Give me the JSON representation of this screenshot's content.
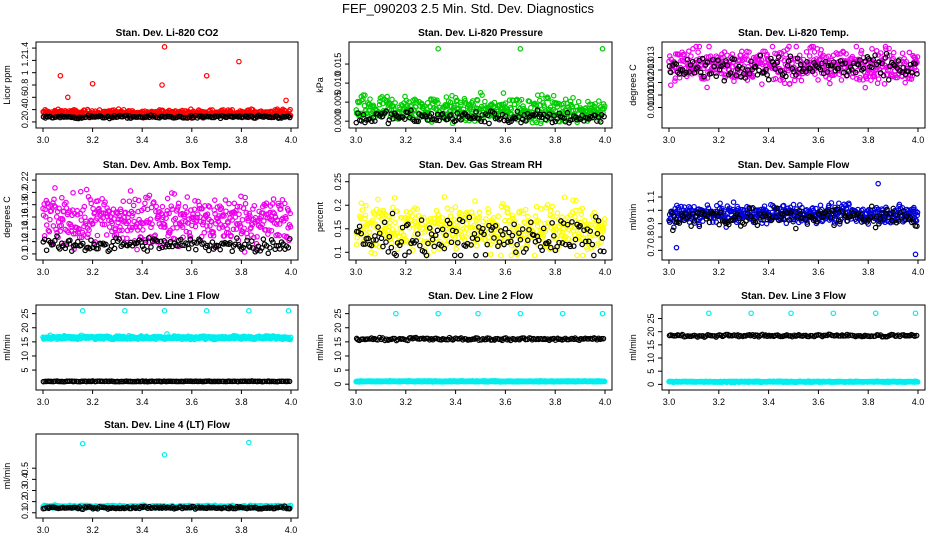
{
  "page": {
    "title": "FEF_090203  2.5 Min. Std. Dev. Diagnostics"
  },
  "chart_data": [
    {
      "type": "scatter",
      "title": "Stan. Dev. Li-820 CO2",
      "xlabel": "",
      "ylabel": "Licor ppm",
      "xlim": [
        3.0,
        4.0
      ],
      "ylim": [
        0.15,
        1.45
      ],
      "xticks": [
        3.0,
        3.2,
        3.4,
        3.6,
        3.8,
        4.0
      ],
      "yticks": [
        0.2,
        0.4,
        0.6,
        0.8,
        1.0,
        1.2,
        1.4
      ],
      "grid": false,
      "series": [
        {
          "color": "#ff0000",
          "base": 0.34,
          "noise": 0.05,
          "highs": [
            [
              3.07,
              0.95
            ],
            [
              3.1,
              0.6
            ],
            [
              3.2,
              0.82
            ],
            [
              3.49,
              1.42
            ],
            [
              3.48,
              0.8
            ],
            [
              3.66,
              0.95
            ],
            [
              3.79,
              1.18
            ],
            [
              3.98,
              0.55
            ]
          ]
        },
        {
          "color": "#000000",
          "base": 0.28,
          "noise": 0.02,
          "highs": []
        }
      ]
    },
    {
      "type": "scatter",
      "title": "Stan. Dev. Li-820 Pressure",
      "xlabel": "",
      "ylabel": "kPa",
      "xlim": [
        3.0,
        4.0
      ],
      "ylim": [
        -0.001,
        0.02
      ],
      "xticks": [
        3.0,
        3.2,
        3.4,
        3.6,
        3.8,
        4.0
      ],
      "yticks": [
        0.0,
        0.005,
        0.01,
        0.015
      ],
      "grid": false,
      "series": [
        {
          "color": "#00cc00",
          "base": 0.003,
          "noise": 0.003,
          "highs": [
            [
              3.33,
              0.019
            ],
            [
              3.66,
              0.019
            ],
            [
              3.99,
              0.019
            ]
          ]
        },
        {
          "color": "#000000",
          "base": 0.001,
          "noise": 0.0015,
          "highs": []
        }
      ]
    },
    {
      "type": "scatter",
      "title": "Stan. Dev. Li-820 Temp.",
      "xlabel": "",
      "ylabel": "degrees C",
      "xlim": [
        3.0,
        4.0
      ],
      "ylim": [
        0.0103,
        0.0135
      ],
      "xticks": [
        3.0,
        3.2,
        3.4,
        3.6,
        3.8,
        4.0
      ],
      "yticks": [
        0.011,
        0.0115,
        0.012,
        0.0125,
        0.013
      ],
      "grid": false,
      "series": [
        {
          "color": "#ee00ee",
          "base": 0.0127,
          "noise": 0.0006,
          "highs": []
        },
        {
          "color": "#000000",
          "base": 0.0126,
          "noise": 0.0004,
          "highs": []
        }
      ]
    },
    {
      "type": "scatter",
      "title": "Stan. Dev. Amb. Box Temp.",
      "xlabel": "",
      "ylabel": "degrees C",
      "xlim": [
        3.0,
        4.0
      ],
      "ylim": [
        0.095,
        0.225
      ],
      "xticks": [
        3.0,
        3.2,
        3.4,
        3.6,
        3.8,
        4.0
      ],
      "yticks": [
        0.1,
        0.12,
        0.14,
        0.16,
        0.18,
        0.2,
        0.22
      ],
      "grid": false,
      "series": [
        {
          "color": "#ee00ee",
          "base": 0.155,
          "noise": 0.035,
          "highs": []
        },
        {
          "color": "#000000",
          "base": 0.115,
          "noise": 0.01,
          "highs": []
        }
      ]
    },
    {
      "type": "scatter",
      "title": "Stan. Dev. Gas Stream RH",
      "xlabel": "",
      "ylabel": "percent",
      "xlim": [
        3.0,
        4.0
      ],
      "ylim": [
        0.09,
        0.26
      ],
      "xticks": [
        3.0,
        3.2,
        3.4,
        3.6,
        3.8,
        4.0
      ],
      "yticks": [
        0.1,
        0.15,
        0.2,
        0.25
      ],
      "grid": false,
      "series": [
        {
          "color": "#ffff00",
          "base": 0.15,
          "noise": 0.045,
          "highs": []
        },
        {
          "color": "#000000",
          "base": 0.13,
          "noise": 0.035,
          "highs": []
        }
      ]
    },
    {
      "type": "scatter",
      "title": "Stan. Dev. Sample Flow",
      "xlabel": "",
      "ylabel": "ml/min",
      "xlim": [
        3.0,
        4.0
      ],
      "ylim": [
        0.65,
        1.25
      ],
      "xticks": [
        3.0,
        3.2,
        3.4,
        3.6,
        3.8,
        4.0
      ],
      "yticks": [
        0.7,
        0.8,
        0.9,
        1.0,
        1.1
      ],
      "grid": false,
      "series": [
        {
          "color": "#0000dd",
          "base": 0.97,
          "noise": 0.06,
          "highs": [
            [
              3.03,
              0.72
            ],
            [
              3.99,
              0.67
            ],
            [
              3.84,
              1.2
            ]
          ]
        },
        {
          "color": "#000000",
          "base": 0.95,
          "noise": 0.07,
          "highs": []
        }
      ]
    },
    {
      "type": "scatter",
      "title": "Stan. Dev. Line 1 Flow",
      "xlabel": "",
      "ylabel": "ml/min",
      "xlim": [
        3.0,
        4.0
      ],
      "ylim": [
        -1,
        27
      ],
      "xticks": [
        3.0,
        3.2,
        3.4,
        3.6,
        3.8,
        4.0
      ],
      "yticks": [
        5,
        10,
        15,
        20,
        25
      ],
      "grid": false,
      "series": [
        {
          "color": "#00eeee",
          "base": 16.5,
          "noise": 0.5,
          "highs": [
            [
              3.16,
              26
            ],
            [
              3.33,
              26
            ],
            [
              3.49,
              26
            ],
            [
              3.66,
              26
            ],
            [
              3.83,
              26
            ],
            [
              3.99,
              26
            ],
            [
              3.5,
              17.8
            ]
          ]
        },
        {
          "color": "#000000",
          "base": 1.0,
          "noise": 0.1,
          "highs": []
        }
      ]
    },
    {
      "type": "scatter",
      "title": "Stan. Dev. Line 2 Flow",
      "xlabel": "",
      "ylabel": "ml/min",
      "xlim": [
        3.0,
        4.0
      ],
      "ylim": [
        -1,
        27
      ],
      "xticks": [
        3.0,
        3.2,
        3.4,
        3.6,
        3.8,
        4.0
      ],
      "yticks": [
        0,
        5,
        10,
        15,
        20,
        25
      ],
      "grid": false,
      "series": [
        {
          "color": "#00eeee",
          "base": 1.0,
          "noise": 0.15,
          "highs": [
            [
              3.16,
              25
            ],
            [
              3.33,
              25
            ],
            [
              3.49,
              25
            ],
            [
              3.66,
              25
            ],
            [
              3.83,
              25
            ],
            [
              3.99,
              25
            ]
          ]
        },
        {
          "color": "#000000",
          "base": 16.0,
          "noise": 0.4,
          "highs": []
        }
      ]
    },
    {
      "type": "scatter",
      "title": "Stan. Dev. Line 3 Flow",
      "xlabel": "",
      "ylabel": "ml/min",
      "xlim": [
        3.0,
        4.0
      ],
      "ylim": [
        -1,
        29
      ],
      "xticks": [
        3.0,
        3.2,
        3.4,
        3.6,
        3.8,
        4.0
      ],
      "yticks": [
        0,
        5,
        10,
        15,
        20,
        25
      ],
      "grid": false,
      "series": [
        {
          "color": "#00eeee",
          "base": 1.0,
          "noise": 0.15,
          "highs": [
            [
              3.16,
              27
            ],
            [
              3.33,
              27
            ],
            [
              3.49,
              27
            ],
            [
              3.66,
              27
            ],
            [
              3.83,
              27
            ],
            [
              3.99,
              27
            ]
          ]
        },
        {
          "color": "#000000",
          "base": 18.5,
          "noise": 0.4,
          "highs": []
        }
      ]
    },
    {
      "type": "scatter",
      "title": "Stan. Dev. Line 4 (LT) Flow",
      "xlabel": "",
      "ylabel": "ml/min",
      "xlim": [
        3.0,
        4.0
      ],
      "ylim": [
        0.08,
        0.78
      ],
      "xticks": [
        3.0,
        3.2,
        3.4,
        3.6,
        3.8,
        4.0
      ],
      "yticks": [
        0.1,
        0.2,
        0.3,
        0.4,
        0.5
      ],
      "grid": false,
      "series": [
        {
          "color": "#00eeee",
          "base": 0.155,
          "noise": 0.01,
          "highs": [
            [
              3.16,
              0.72
            ],
            [
              3.49,
              0.62
            ],
            [
              3.83,
              0.73
            ]
          ]
        },
        {
          "color": "#000000",
          "base": 0.145,
          "noise": 0.01,
          "highs": []
        }
      ]
    }
  ]
}
